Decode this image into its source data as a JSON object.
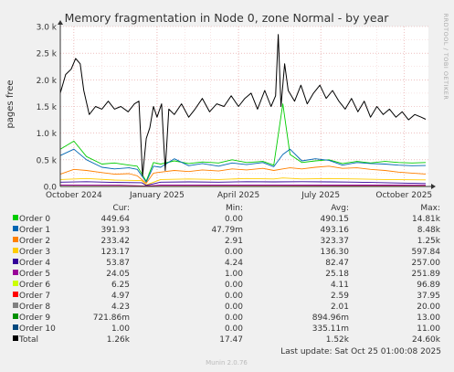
{
  "chart_data": {
    "type": "line",
    "title": "Memory fragmentation in Node 0, zone Normal - by year",
    "ylabel": "pages free",
    "side_label": "RRDTOOL / TOBI OETIKER",
    "ylim": [
      0,
      3000
    ],
    "yticks": [
      {
        "value": 0,
        "label": "0.0"
      },
      {
        "value": 500,
        "label": "0.5 k"
      },
      {
        "value": 1000,
        "label": "1.0 k"
      },
      {
        "value": 1500,
        "label": "1.5 k"
      },
      {
        "value": 2000,
        "label": "2.0 k"
      },
      {
        "value": 2500,
        "label": "2.5 k"
      },
      {
        "value": 3000,
        "label": "3.0 k"
      }
    ],
    "xlim": [
      "2024-09-16",
      "2025-10-28"
    ],
    "xticks": [
      {
        "date": "2024-10-01",
        "label": "October 2024"
      },
      {
        "date": "2025-01-01",
        "label": "January 2025"
      },
      {
        "date": "2025-04-01",
        "label": "April 2025"
      },
      {
        "date": "2025-07-01",
        "label": "July 2025"
      },
      {
        "date": "2025-10-01",
        "label": "October 2025"
      }
    ],
    "grid": true,
    "legend_headers": [
      "Cur:",
      "Min:",
      "Avg:",
      "Max:"
    ],
    "series": [
      {
        "name": "Order 0",
        "color": "#00cc00",
        "cur": "449.64",
        "min": "0.00",
        "avg": "490.15",
        "max": "14.81k",
        "points": [
          [
            "2024-09-16",
            700
          ],
          [
            "2024-10-01",
            850
          ],
          [
            "2024-10-15",
            560
          ],
          [
            "2024-11-01",
            420
          ],
          [
            "2024-11-15",
            440
          ],
          [
            "2024-12-01",
            400
          ],
          [
            "2024-12-10",
            380
          ],
          [
            "2024-12-20",
            100
          ],
          [
            "2024-12-28",
            450
          ],
          [
            "2025-01-05",
            420
          ],
          [
            "2025-01-20",
            480
          ],
          [
            "2025-02-05",
            430
          ],
          [
            "2025-02-20",
            460
          ],
          [
            "2025-03-10",
            440
          ],
          [
            "2025-03-25",
            500
          ],
          [
            "2025-04-10",
            450
          ],
          [
            "2025-04-28",
            470
          ],
          [
            "2025-05-10",
            400
          ],
          [
            "2025-05-20",
            1550
          ],
          [
            "2025-05-28",
            600
          ],
          [
            "2025-06-10",
            450
          ],
          [
            "2025-06-25",
            480
          ],
          [
            "2025-07-10",
            500
          ],
          [
            "2025-07-25",
            430
          ],
          [
            "2025-08-10",
            470
          ],
          [
            "2025-08-25",
            440
          ],
          [
            "2025-09-10",
            470
          ],
          [
            "2025-09-25",
            450
          ],
          [
            "2025-10-10",
            440
          ],
          [
            "2025-10-25",
            450
          ]
        ]
      },
      {
        "name": "Order 1",
        "color": "#0066b3",
        "cur": "391.93",
        "min": "47.79m",
        "avg": "493.16",
        "max": "8.48k",
        "points": [
          [
            "2024-09-16",
            580
          ],
          [
            "2024-10-01",
            700
          ],
          [
            "2024-10-15",
            500
          ],
          [
            "2024-11-01",
            360
          ],
          [
            "2024-11-15",
            330
          ],
          [
            "2024-12-01",
            350
          ],
          [
            "2024-12-10",
            320
          ],
          [
            "2024-12-20",
            80
          ],
          [
            "2024-12-28",
            380
          ],
          [
            "2025-01-05",
            360
          ],
          [
            "2025-01-20",
            520
          ],
          [
            "2025-02-05",
            390
          ],
          [
            "2025-02-20",
            430
          ],
          [
            "2025-03-10",
            380
          ],
          [
            "2025-03-25",
            440
          ],
          [
            "2025-04-10",
            410
          ],
          [
            "2025-04-28",
            450
          ],
          [
            "2025-05-10",
            370
          ],
          [
            "2025-05-20",
            600
          ],
          [
            "2025-05-28",
            700
          ],
          [
            "2025-06-10",
            480
          ],
          [
            "2025-06-25",
            520
          ],
          [
            "2025-07-10",
            490
          ],
          [
            "2025-07-25",
            400
          ],
          [
            "2025-08-10",
            450
          ],
          [
            "2025-08-25",
            430
          ],
          [
            "2025-09-10",
            420
          ],
          [
            "2025-09-25",
            400
          ],
          [
            "2025-10-10",
            390
          ],
          [
            "2025-10-25",
            392
          ]
        ]
      },
      {
        "name": "Order 2",
        "color": "#ff8000",
        "cur": "233.42",
        "min": "2.91",
        "avg": "323.37",
        "max": "1.25k",
        "points": [
          [
            "2024-09-16",
            230
          ],
          [
            "2024-10-01",
            320
          ],
          [
            "2024-10-15",
            300
          ],
          [
            "2024-11-01",
            260
          ],
          [
            "2024-11-15",
            230
          ],
          [
            "2024-12-01",
            240
          ],
          [
            "2024-12-10",
            200
          ],
          [
            "2024-12-20",
            60
          ],
          [
            "2024-12-28",
            250
          ],
          [
            "2025-01-05",
            270
          ],
          [
            "2025-01-20",
            300
          ],
          [
            "2025-02-05",
            280
          ],
          [
            "2025-02-20",
            310
          ],
          [
            "2025-03-10",
            290
          ],
          [
            "2025-03-25",
            330
          ],
          [
            "2025-04-10",
            310
          ],
          [
            "2025-04-28",
            340
          ],
          [
            "2025-05-10",
            300
          ],
          [
            "2025-05-20",
            330
          ],
          [
            "2025-05-28",
            350
          ],
          [
            "2025-06-10",
            330
          ],
          [
            "2025-06-25",
            360
          ],
          [
            "2025-07-10",
            380
          ],
          [
            "2025-07-25",
            340
          ],
          [
            "2025-08-10",
            350
          ],
          [
            "2025-08-25",
            320
          ],
          [
            "2025-09-10",
            300
          ],
          [
            "2025-09-25",
            270
          ],
          [
            "2025-10-10",
            250
          ],
          [
            "2025-10-25",
            233
          ]
        ]
      },
      {
        "name": "Order 3",
        "color": "#ffcc00",
        "cur": "123.17",
        "min": "0.00",
        "avg": "136.30",
        "max": "597.84",
        "points": [
          [
            "2024-09-16",
            130
          ],
          [
            "2024-10-15",
            150
          ],
          [
            "2024-11-15",
            120
          ],
          [
            "2024-12-15",
            110
          ],
          [
            "2024-12-20",
            30
          ],
          [
            "2025-01-05",
            130
          ],
          [
            "2025-02-05",
            140
          ],
          [
            "2025-03-10",
            130
          ],
          [
            "2025-04-10",
            150
          ],
          [
            "2025-05-10",
            140
          ],
          [
            "2025-05-20",
            160
          ],
          [
            "2025-06-10",
            140
          ],
          [
            "2025-07-10",
            150
          ],
          [
            "2025-08-10",
            140
          ],
          [
            "2025-09-10",
            130
          ],
          [
            "2025-10-25",
            123
          ]
        ]
      },
      {
        "name": "Order 4",
        "color": "#330099",
        "cur": "53.87",
        "min": "4.24",
        "avg": "82.47",
        "max": "257.00",
        "points": [
          [
            "2024-09-16",
            80
          ],
          [
            "2024-10-15",
            90
          ],
          [
            "2024-11-15",
            75
          ],
          [
            "2024-12-15",
            70
          ],
          [
            "2024-12-20",
            20
          ],
          [
            "2025-01-05",
            80
          ],
          [
            "2025-02-05",
            85
          ],
          [
            "2025-03-10",
            80
          ],
          [
            "2025-04-10",
            90
          ],
          [
            "2025-05-10",
            85
          ],
          [
            "2025-06-10",
            90
          ],
          [
            "2025-07-10",
            85
          ],
          [
            "2025-08-10",
            80
          ],
          [
            "2025-09-10",
            70
          ],
          [
            "2025-10-25",
            54
          ]
        ]
      },
      {
        "name": "Order 5",
        "color": "#990099",
        "cur": "24.05",
        "min": "1.00",
        "avg": "25.18",
        "max": "251.89",
        "points": [
          [
            "2024-09-16",
            25
          ],
          [
            "2024-11-15",
            28
          ],
          [
            "2024-12-20",
            10
          ],
          [
            "2025-01-05",
            25
          ],
          [
            "2025-03-10",
            26
          ],
          [
            "2025-05-10",
            25
          ],
          [
            "2025-07-10",
            26
          ],
          [
            "2025-09-10",
            25
          ],
          [
            "2025-10-25",
            24
          ]
        ]
      },
      {
        "name": "Order 6",
        "color": "#ccff00",
        "cur": "6.25",
        "min": "0.00",
        "avg": "4.11",
        "max": "96.89",
        "points": [
          [
            "2024-09-16",
            4
          ],
          [
            "2025-01-05",
            4
          ],
          [
            "2025-05-10",
            5
          ],
          [
            "2025-10-25",
            6
          ]
        ]
      },
      {
        "name": "Order 7",
        "color": "#ff0000",
        "cur": "4.97",
        "min": "0.00",
        "avg": "2.59",
        "max": "37.95",
        "points": [
          [
            "2024-09-16",
            2
          ],
          [
            "2025-01-05",
            3
          ],
          [
            "2025-05-10",
            3
          ],
          [
            "2025-10-25",
            5
          ]
        ]
      },
      {
        "name": "Order 8",
        "color": "#808080",
        "cur": "4.23",
        "min": "0.00",
        "avg": "2.01",
        "max": "20.00",
        "points": [
          [
            "2024-09-16",
            2
          ],
          [
            "2025-01-05",
            2
          ],
          [
            "2025-05-10",
            2
          ],
          [
            "2025-10-25",
            4
          ]
        ]
      },
      {
        "name": "Order 9",
        "color": "#008f00",
        "cur": "721.86m",
        "min": "0.00",
        "avg": "894.96m",
        "max": "13.00",
        "points": [
          [
            "2024-09-16",
            1
          ],
          [
            "2025-05-10",
            1
          ],
          [
            "2025-10-25",
            0.7
          ]
        ]
      },
      {
        "name": "Order 10",
        "color": "#00487d",
        "cur": "1.00",
        "min": "0.00",
        "avg": "335.11m",
        "max": "11.00",
        "points": [
          [
            "2024-09-16",
            0.3
          ],
          [
            "2025-05-10",
            0.3
          ],
          [
            "2025-10-25",
            1
          ]
        ]
      },
      {
        "name": "Total",
        "color": "#000000",
        "cur": "1.26k",
        "min": "17.47",
        "avg": "1.52k",
        "max": "24.60k",
        "points": [
          [
            "2024-09-16",
            1750
          ],
          [
            "2024-09-22",
            2100
          ],
          [
            "2024-09-28",
            2200
          ],
          [
            "2024-10-03",
            2400
          ],
          [
            "2024-10-08",
            2300
          ],
          [
            "2024-10-12",
            1800
          ],
          [
            "2024-10-18",
            1350
          ],
          [
            "2024-10-25",
            1500
          ],
          [
            "2024-11-01",
            1450
          ],
          [
            "2024-11-08",
            1600
          ],
          [
            "2024-11-15",
            1450
          ],
          [
            "2024-11-22",
            1500
          ],
          [
            "2024-11-30",
            1400
          ],
          [
            "2024-12-07",
            1550
          ],
          [
            "2024-12-12",
            1600
          ],
          [
            "2024-12-16",
            200
          ],
          [
            "2024-12-20",
            900
          ],
          [
            "2024-12-24",
            1100
          ],
          [
            "2024-12-28",
            1500
          ],
          [
            "2025-01-01",
            1300
          ],
          [
            "2025-01-06",
            1550
          ],
          [
            "2025-01-10",
            300
          ],
          [
            "2025-01-14",
            1450
          ],
          [
            "2025-01-20",
            1350
          ],
          [
            "2025-01-28",
            1550
          ],
          [
            "2025-02-05",
            1300
          ],
          [
            "2025-02-12",
            1450
          ],
          [
            "2025-02-20",
            1650
          ],
          [
            "2025-02-28",
            1400
          ],
          [
            "2025-03-08",
            1550
          ],
          [
            "2025-03-16",
            1500
          ],
          [
            "2025-03-24",
            1700
          ],
          [
            "2025-04-01",
            1500
          ],
          [
            "2025-04-08",
            1650
          ],
          [
            "2025-04-15",
            1750
          ],
          [
            "2025-04-22",
            1450
          ],
          [
            "2025-04-30",
            1800
          ],
          [
            "2025-05-07",
            1500
          ],
          [
            "2025-05-12",
            1700
          ],
          [
            "2025-05-15",
            2850
          ],
          [
            "2025-05-18",
            1500
          ],
          [
            "2025-05-22",
            2300
          ],
          [
            "2025-05-26",
            1800
          ],
          [
            "2025-06-02",
            1600
          ],
          [
            "2025-06-09",
            1900
          ],
          [
            "2025-06-16",
            1550
          ],
          [
            "2025-06-23",
            1750
          ],
          [
            "2025-06-30",
            1900
          ],
          [
            "2025-07-07",
            1650
          ],
          [
            "2025-07-14",
            1800
          ],
          [
            "2025-07-21",
            1600
          ],
          [
            "2025-07-28",
            1450
          ],
          [
            "2025-08-04",
            1650
          ],
          [
            "2025-08-11",
            1400
          ],
          [
            "2025-08-18",
            1600
          ],
          [
            "2025-08-25",
            1300
          ],
          [
            "2025-09-01",
            1500
          ],
          [
            "2025-09-08",
            1350
          ],
          [
            "2025-09-15",
            1450
          ],
          [
            "2025-09-22",
            1300
          ],
          [
            "2025-09-29",
            1400
          ],
          [
            "2025-10-06",
            1250
          ],
          [
            "2025-10-13",
            1350
          ],
          [
            "2025-10-20",
            1300
          ],
          [
            "2025-10-25",
            1260
          ]
        ]
      }
    ]
  },
  "footer": {
    "last_update": "Last update: Sat Oct 25 01:00:08 2025",
    "version": "Munin 2.0.76"
  }
}
